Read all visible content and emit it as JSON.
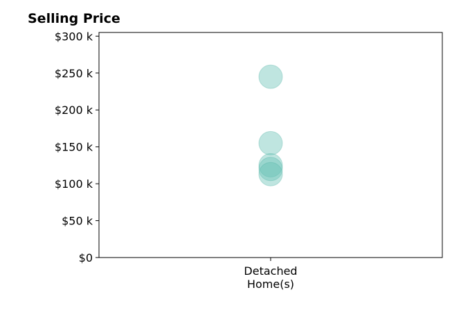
{
  "chart_data": {
    "type": "scatter",
    "title": "Selling Price",
    "xlabel": "",
    "ylabel": "",
    "categories": [
      "Detached\nHome(s)"
    ],
    "series": [
      {
        "category": "Detached\nHome(s)",
        "values": [
          245000,
          155000,
          125000,
          120000,
          113000
        ]
      }
    ],
    "ylim": [
      0,
      305000
    ],
    "yticks": [
      0,
      50000,
      100000,
      150000,
      200000,
      250000,
      300000
    ],
    "ytick_labels": [
      "$0",
      "$50 k",
      "$100 k",
      "$150 k",
      "$200 k",
      "$250 k",
      "$300 k"
    ],
    "grid": false,
    "legend": "none",
    "marker_color": "#66c2b5",
    "marker_edge_color": "#4fb3a4"
  }
}
